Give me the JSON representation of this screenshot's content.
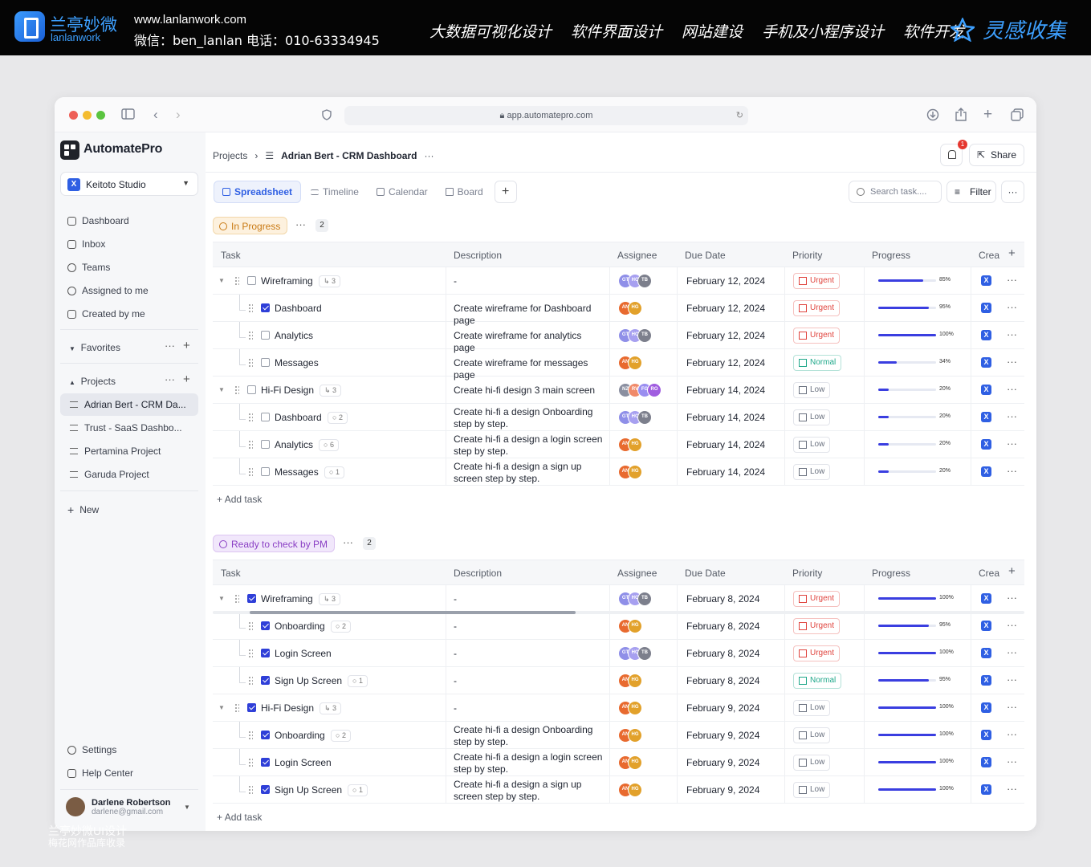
{
  "banner": {
    "brand_cn": "兰亭妙微",
    "brand_en": "lanlanwork",
    "website": "www.lanlanwork.com",
    "contact": "微信：ben_lanlan    电话：010-63334945",
    "services": [
      "大数据可视化设计",
      "软件界面设计",
      "网站建设",
      "手机及小程序设计",
      "软件开发"
    ],
    "inspiration": "灵感收集"
  },
  "browser": {
    "url": "app.automatepro.com"
  },
  "sidebar": {
    "app_name": "AutomatePro",
    "workspace": "Keitoto Studio",
    "workspace_badge": "X",
    "nav": [
      "Dashboard",
      "Inbox",
      "Teams",
      "Assigned to me",
      "Created by me"
    ],
    "favorites": "Favorites",
    "projects_label": "Projects",
    "projects": [
      "Adrian Bert - CRM Da...",
      "Trust - SaaS Dashbo...",
      "Pertamina Project",
      "Garuda Project"
    ],
    "new": "New",
    "settings": "Settings",
    "help": "Help Center",
    "user": {
      "name": "Darlene Robertson",
      "email": "darlene@gmail.com"
    }
  },
  "header": {
    "crumb_root": "Projects",
    "crumb_current": "Adrian Bert - CRM Dashboard",
    "notifications": "1",
    "share": "Share",
    "tabs": [
      "Spreadsheet",
      "Timeline",
      "Calendar",
      "Board"
    ],
    "search_placeholder": "Search task....",
    "filter": "Filter"
  },
  "columns": [
    "Task",
    "Description",
    "Assignee",
    "Due Date",
    "Priority",
    "Progress",
    "Crea"
  ],
  "add_task": "Add task",
  "colors": {
    "accent": "#2f5fe3",
    "urgent": "#e0443e",
    "normal": "#1fa88a",
    "low": "#6b7280",
    "progress": "#3a3ee0"
  },
  "groups": [
    {
      "label": "In Progress",
      "count": "2",
      "rows": [
        {
          "level": 0,
          "name": "Wireframing",
          "badge": "3",
          "done": false,
          "desc": "-",
          "assignees": [
            "GT",
            "HC",
            "TB"
          ],
          "due": "February 12, 2024",
          "priority": "Urgent",
          "progress": 85,
          "pct": "85%"
        },
        {
          "level": 1,
          "name": "Dashboard",
          "badge": "",
          "done": true,
          "desc": "Create wireframe for Dashboard page",
          "assignees": [
            "AN",
            "HG"
          ],
          "due": "February 12, 2024",
          "priority": "Urgent",
          "progress": 95,
          "pct": "95%"
        },
        {
          "level": 1,
          "name": "Analytics",
          "badge": "",
          "done": false,
          "desc": "Create wireframe for analytics page",
          "assignees": [
            "GT",
            "HC",
            "TB"
          ],
          "due": "February 12, 2024",
          "priority": "Urgent",
          "progress": 100,
          "pct": "100%"
        },
        {
          "level": 1,
          "name": "Messages",
          "badge": "",
          "done": false,
          "desc": "Create wireframe for messages page",
          "assignees": [
            "AN",
            "HG"
          ],
          "due": "February 12, 2024",
          "priority": "Normal",
          "progress": 34,
          "pct": "34%"
        },
        {
          "level": 0,
          "name": "Hi-Fi Design",
          "badge": "3",
          "done": false,
          "desc": "Create hi-fi design  3 main screen",
          "assignees": [
            "NZ",
            "RV",
            "FG",
            "RO"
          ],
          "due": "February 14, 2024",
          "priority": "Low",
          "progress": 20,
          "pct": "20%"
        },
        {
          "level": 1,
          "name": "Dashboard",
          "badge": "2",
          "done": false,
          "desc": "Create hi-fi a design Onboarding step by step.",
          "assignees": [
            "GT",
            "HC",
            "TB"
          ],
          "due": "February 14, 2024",
          "priority": "Low",
          "progress": 20,
          "pct": "20%"
        },
        {
          "level": 1,
          "name": "Analytics",
          "badge": "6",
          "done": false,
          "desc": "Create hi-fi a design a login screen step by step.",
          "assignees": [
            "AN",
            "HG"
          ],
          "due": "February 14, 2024",
          "priority": "Low",
          "progress": 20,
          "pct": "20%"
        },
        {
          "level": 1,
          "name": "Messages",
          "badge": "1",
          "done": false,
          "desc": "Create hi-fi a design a sign up screen step by step.",
          "assignees": [
            "AN",
            "HG"
          ],
          "due": "February 14, 2024",
          "priority": "Low",
          "progress": 20,
          "pct": "20%"
        }
      ]
    },
    {
      "label": "Ready to check by PM",
      "count": "2",
      "rows": [
        {
          "level": 0,
          "name": "Wireframing",
          "badge": "3",
          "done": true,
          "desc": "-",
          "assignees": [
            "GT",
            "HC",
            "TB"
          ],
          "due": "February 8, 2024",
          "priority": "Urgent",
          "progress": 100,
          "pct": "100%"
        },
        {
          "level": 1,
          "name": "Onboarding",
          "badge": "2",
          "done": true,
          "desc": "-",
          "assignees": [
            "AN",
            "HG"
          ],
          "due": "February 8, 2024",
          "priority": "Urgent",
          "progress": 95,
          "pct": "95%"
        },
        {
          "level": 1,
          "name": "Login Screen",
          "badge": "",
          "done": true,
          "desc": "-",
          "assignees": [
            "GT",
            "HC",
            "TB"
          ],
          "due": "February 8, 2024",
          "priority": "Urgent",
          "progress": 100,
          "pct": "100%"
        },
        {
          "level": 1,
          "name": "Sign Up Screen",
          "badge": "1",
          "done": true,
          "desc": "-",
          "assignees": [
            "AN",
            "HG"
          ],
          "due": "February 8, 2024",
          "priority": "Normal",
          "progress": 95,
          "pct": "95%"
        },
        {
          "level": 0,
          "name": "Hi-Fi Design",
          "badge": "3",
          "done": true,
          "desc": "-",
          "assignees": [
            "AN",
            "HG"
          ],
          "due": "February 9, 2024",
          "priority": "Low",
          "progress": 100,
          "pct": "100%"
        },
        {
          "level": 1,
          "name": "Onboarding",
          "badge": "2",
          "done": true,
          "desc": "Create hi-fi a design Onboarding step by step.",
          "assignees": [
            "AN",
            "HG"
          ],
          "due": "February 9, 2024",
          "priority": "Low",
          "progress": 100,
          "pct": "100%"
        },
        {
          "level": 1,
          "name": "Login Screen",
          "badge": "",
          "done": true,
          "desc": "Create hi-fi a design a login screen step by step.",
          "assignees": [
            "AN",
            "HG"
          ],
          "due": "February 9, 2024",
          "priority": "Low",
          "progress": 100,
          "pct": "100%"
        },
        {
          "level": 1,
          "name": "Sign Up Screen",
          "badge": "1",
          "done": true,
          "desc": "Create hi-fi a design a sign up screen step by step.",
          "assignees": [
            "AN",
            "HG"
          ],
          "due": "February 9, 2024",
          "priority": "Low",
          "progress": 100,
          "pct": "100%"
        }
      ]
    }
  ],
  "watermark": {
    "line1": "兰亭妙微UI设计",
    "line2": "梅花网作品库收录"
  }
}
